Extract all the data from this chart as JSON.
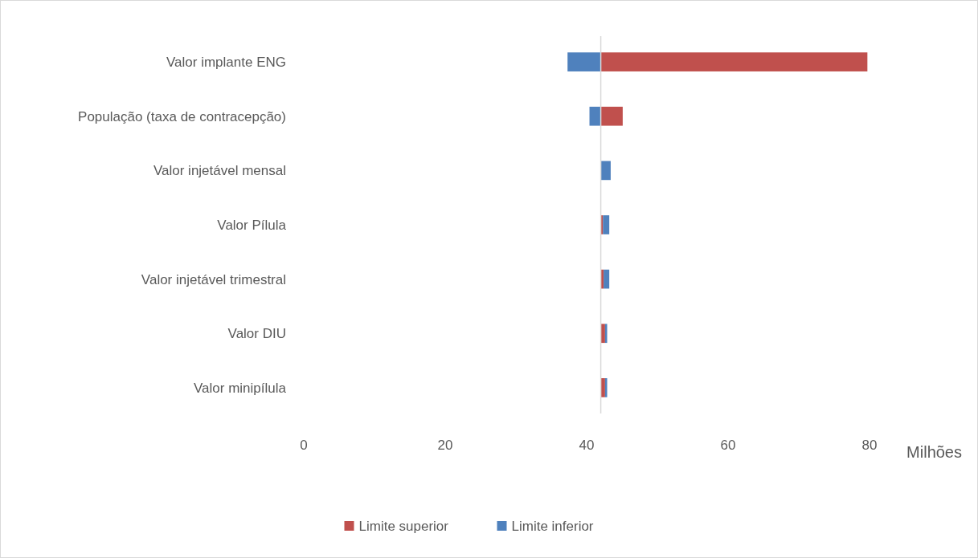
{
  "chart_data": {
    "type": "bar",
    "orientation": "horizontal",
    "xlabel": "Milhões",
    "categories": [
      "Valor implante ENG",
      "População (taxa de contracepção)",
      "Valor injetável mensal ",
      "Valor Pílula ",
      "Valor injetável trimestral ",
      "Valor DIU",
      "Valor minipílula"
    ],
    "series": [
      {
        "name": "Limite superior",
        "color": "#c0504d",
        "base": [
          42,
          42,
          null,
          42,
          42,
          42,
          42
        ],
        "values": [
          37.7,
          3.1,
          null,
          0.3,
          0.4,
          0.6,
          0.6
        ]
      },
      {
        "name": "Limite inferior",
        "color": "#4f81bd",
        "base": [
          37.3,
          40.4,
          42,
          42.3,
          42.4,
          42.6,
          42.6
        ],
        "values": [
          4.7,
          1.6,
          1.4,
          0.9,
          0.8,
          0.3,
          0.3
        ]
      }
    ],
    "xlim": [
      0,
      80
    ],
    "xticks": [
      0,
      20,
      40,
      60,
      80
    ],
    "ref_lines": [
      {
        "axis": "x",
        "value": 42,
        "color": "#d9d9d9"
      }
    ],
    "grid": false,
    "legend": "bottom"
  }
}
